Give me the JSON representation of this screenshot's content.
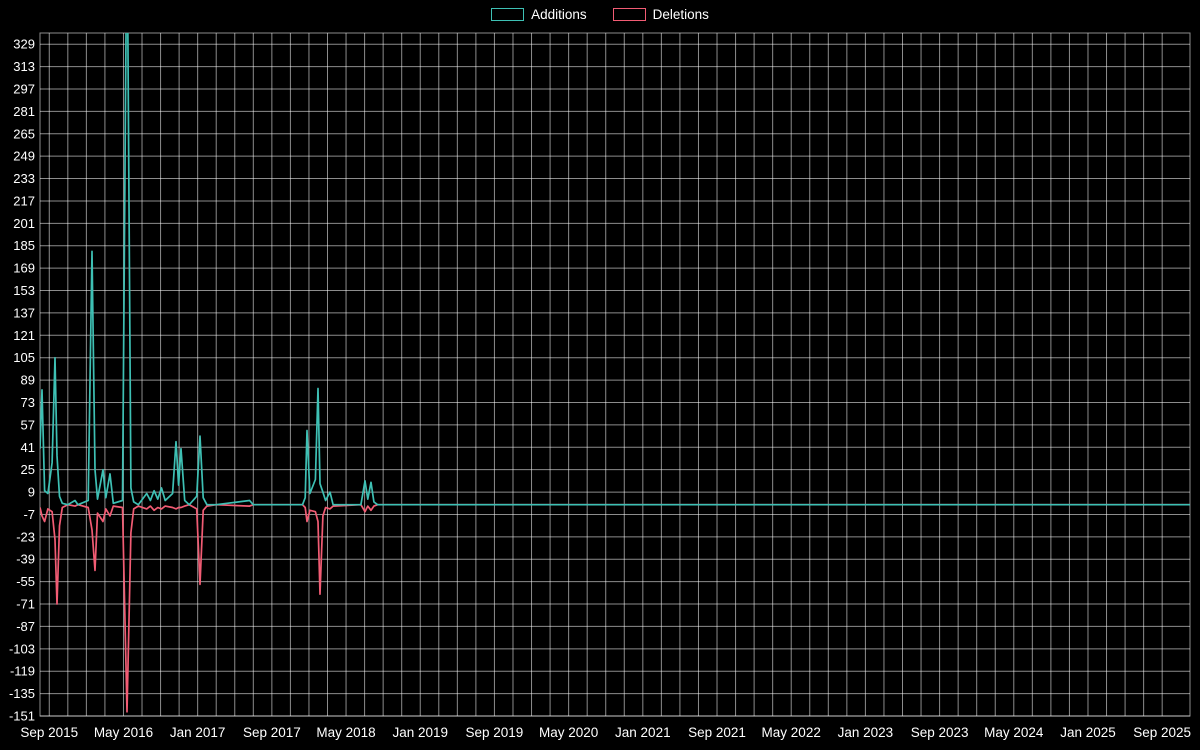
{
  "chart_data": {
    "type": "line",
    "title": "",
    "xlabel": "",
    "ylabel": "",
    "background": "#000000",
    "text_color": "#ffffff",
    "grid": {
      "on": true,
      "color": "#ffffff",
      "opacity": 0.55,
      "x_step_months": 2
    },
    "legend_position": "top-center",
    "xlim_months": [
      -1,
      123
    ],
    "ylim": [
      -151,
      337
    ],
    "y_ticks": [
      329,
      313,
      297,
      281,
      265,
      249,
      233,
      217,
      201,
      185,
      169,
      153,
      137,
      121,
      105,
      89,
      73,
      57,
      41,
      25,
      9,
      -7,
      -23,
      -39,
      -55,
      -71,
      -87,
      -103,
      -119,
      -135,
      -151
    ],
    "x_ticks": [
      {
        "month": 0,
        "label": "Sep 2015"
      },
      {
        "month": 8,
        "label": "May 2016"
      },
      {
        "month": 16,
        "label": "Jan 2017"
      },
      {
        "month": 24,
        "label": "Sep 2017"
      },
      {
        "month": 32,
        "label": "May 2018"
      },
      {
        "month": 40,
        "label": "Jan 2019"
      },
      {
        "month": 48,
        "label": "Sep 2019"
      },
      {
        "month": 56,
        "label": "May 2020"
      },
      {
        "month": 64,
        "label": "Jan 2021"
      },
      {
        "month": 72,
        "label": "Sep 2021"
      },
      {
        "month": 80,
        "label": "May 2022"
      },
      {
        "month": 88,
        "label": "Jan 2023"
      },
      {
        "month": 96,
        "label": "Sep 2023"
      },
      {
        "month": 104,
        "label": "May 2024"
      },
      {
        "month": 112,
        "label": "Jan 2025"
      },
      {
        "month": 120,
        "label": "Sep 2025"
      }
    ],
    "series": [
      {
        "name": "Additions",
        "color": "#3ec0b4"
      },
      {
        "name": "Deletions",
        "color": "#f25c74"
      }
    ],
    "points_format": [
      "months_from_sep2015",
      "additions",
      "deletions"
    ],
    "points": [
      [
        -1.0,
        40,
        -2
      ],
      [
        -0.78,
        82,
        -8
      ],
      [
        -0.5,
        10,
        -12
      ],
      [
        -0.15,
        8,
        -3
      ],
      [
        0.3,
        30,
        -5
      ],
      [
        0.62,
        105,
        -25
      ],
      [
        0.83,
        35,
        -71
      ],
      [
        1.1,
        6,
        -15
      ],
      [
        1.4,
        1,
        -2
      ],
      [
        2.0,
        0,
        0
      ],
      [
        2.77,
        3,
        -1
      ],
      [
        3.1,
        0,
        0
      ],
      [
        4.2,
        3,
        -2
      ],
      [
        4.61,
        181,
        -18
      ],
      [
        4.93,
        25,
        -47
      ],
      [
        5.2,
        4,
        -6
      ],
      [
        5.79,
        25,
        -12
      ],
      [
        6.1,
        5,
        -3
      ],
      [
        6.55,
        22,
        -8
      ],
      [
        6.9,
        1,
        -1
      ],
      [
        7.9,
        3,
        -2
      ],
      [
        8.38,
        430,
        -148
      ],
      [
        8.8,
        12,
        -20
      ],
      [
        9.1,
        2,
        -3
      ],
      [
        9.6,
        0,
        -1
      ],
      [
        10.5,
        8,
        -3
      ],
      [
        10.9,
        3,
        -1
      ],
      [
        11.3,
        10,
        -4
      ],
      [
        11.7,
        4,
        -2
      ],
      [
        12.1,
        12,
        -3
      ],
      [
        12.5,
        3,
        -1
      ],
      [
        13.3,
        8,
        -2
      ],
      [
        13.66,
        45,
        -3
      ],
      [
        13.95,
        14,
        -2
      ],
      [
        14.2,
        40,
        -2
      ],
      [
        14.6,
        3,
        -1
      ],
      [
        15.1,
        0,
        0
      ],
      [
        15.9,
        6,
        -3
      ],
      [
        16.25,
        49,
        -57
      ],
      [
        16.6,
        5,
        -4
      ],
      [
        17.0,
        0,
        -1
      ],
      [
        18.0,
        0,
        0
      ],
      [
        21.6,
        3,
        -1
      ],
      [
        22.0,
        0,
        0
      ],
      [
        27.3,
        0,
        0
      ],
      [
        27.6,
        5,
        -2
      ],
      [
        27.79,
        53,
        -12
      ],
      [
        28.1,
        8,
        -4
      ],
      [
        28.7,
        18,
        -5
      ],
      [
        28.98,
        83,
        -12
      ],
      [
        29.19,
        15,
        -64
      ],
      [
        29.5,
        9,
        -8
      ],
      [
        29.8,
        3,
        -2
      ],
      [
        30.27,
        9,
        -3
      ],
      [
        30.6,
        0,
        -1
      ],
      [
        33.6,
        0,
        0
      ],
      [
        34.04,
        17,
        -5
      ],
      [
        34.35,
        4,
        -1
      ],
      [
        34.69,
        16,
        -4
      ],
      [
        35.0,
        2,
        -1
      ],
      [
        35.4,
        0,
        0
      ],
      [
        40,
        0,
        0
      ],
      [
        60,
        0,
        0
      ],
      [
        80,
        0,
        0
      ],
      [
        100,
        0,
        0
      ],
      [
        123,
        0,
        0
      ]
    ]
  }
}
